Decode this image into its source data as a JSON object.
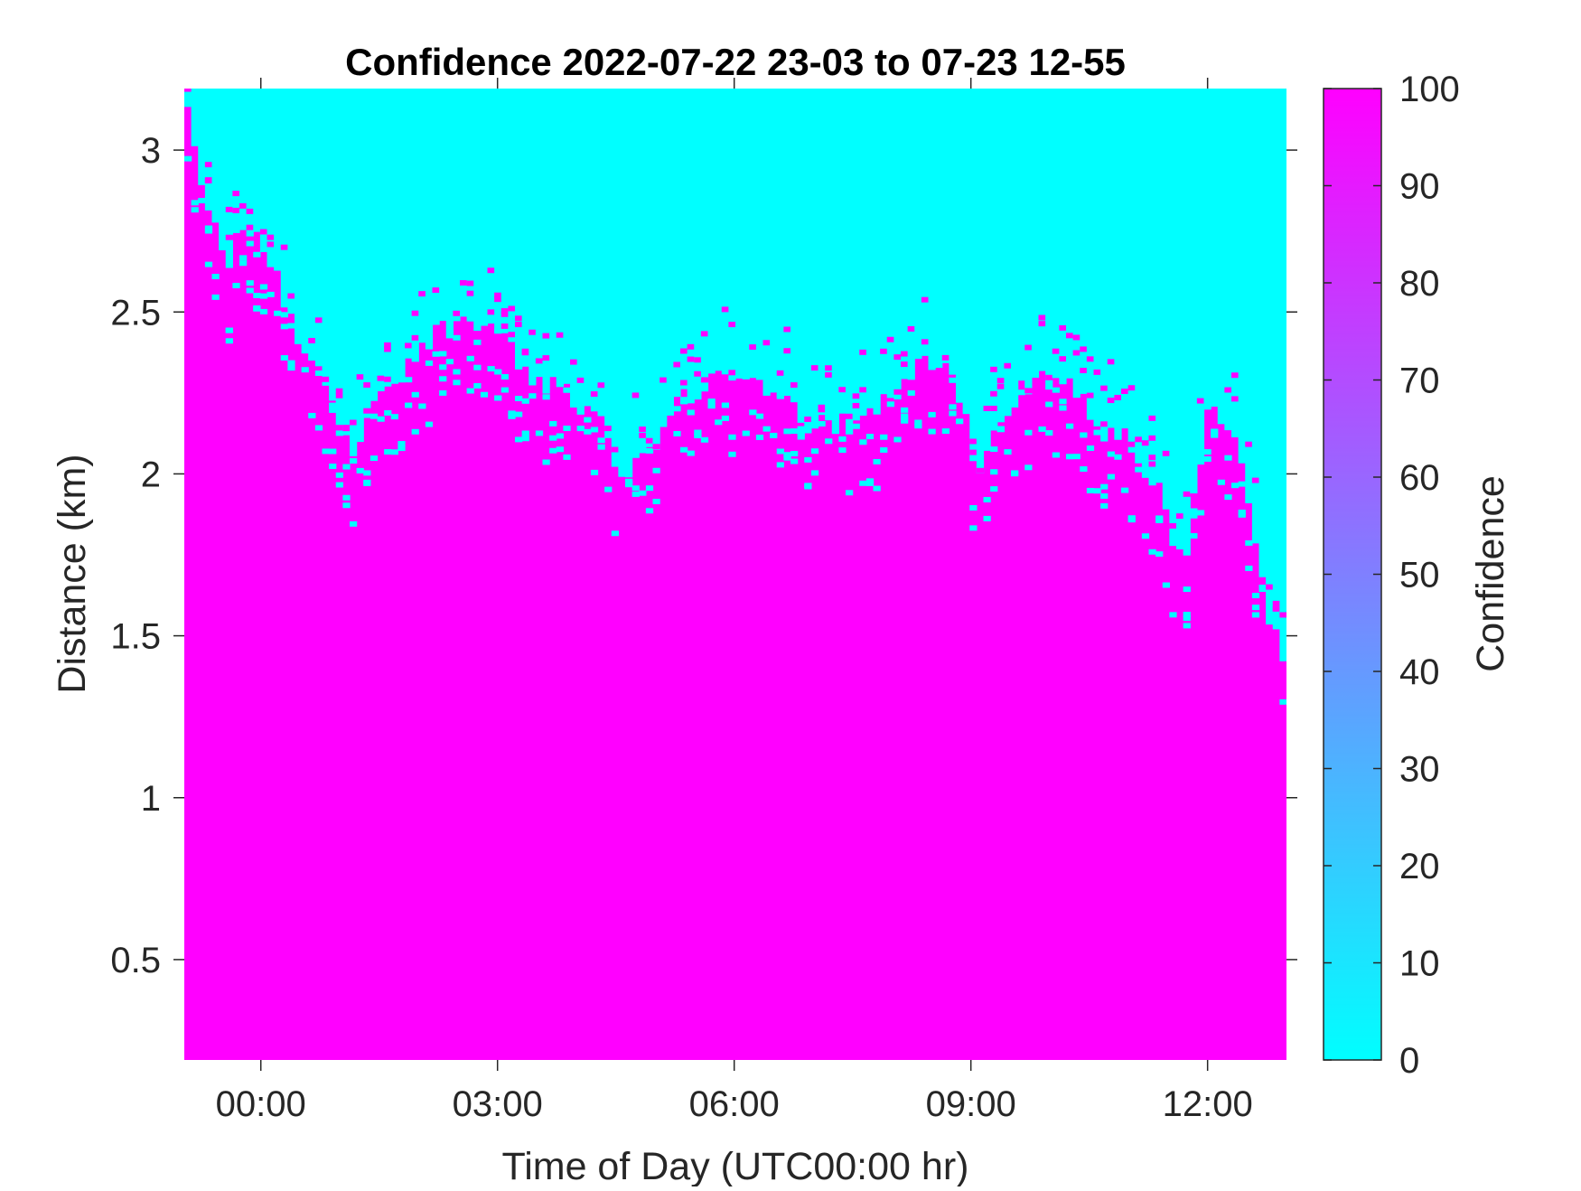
{
  "chart_data": {
    "type": "heatmap",
    "title": "Confidence 2022-07-22 23-03 to 07-23 12-55",
    "xlabel": "Time of Day (UTC00:00 hr)",
    "ylabel": "Distance (km)",
    "x_ticks": [
      {
        "value": 0,
        "label": "00:00"
      },
      {
        "value": 3,
        "label": "03:00"
      },
      {
        "value": 6,
        "label": "06:00"
      },
      {
        "value": 9,
        "label": "09:00"
      },
      {
        "value": 12,
        "label": "12:00"
      }
    ],
    "y_ticks": [
      {
        "value": 0.5,
        "label": "0.5"
      },
      {
        "value": 1,
        "label": "1"
      },
      {
        "value": 1.5,
        "label": "1.5"
      },
      {
        "value": 2,
        "label": "2"
      },
      {
        "value": 2.5,
        "label": "2.5"
      },
      {
        "value": 3,
        "label": "3"
      }
    ],
    "xlim": [
      -0.97,
      13.0
    ],
    "ylim": [
      0.19,
      3.19
    ],
    "colorbar": {
      "label": "Confidence",
      "range": [
        0,
        100
      ],
      "ticks": [
        0,
        10,
        20,
        30,
        40,
        50,
        60,
        70,
        80,
        90,
        100
      ],
      "colormap": "cool",
      "low_color": "#00ffff",
      "high_color": "#ff00ff"
    },
    "high_value": 100,
    "low_value": 0,
    "boundary": {
      "description_units": "time (hours, UTC) vs distance (km) above which confidence is 0",
      "points": [
        [
          -0.97,
          3.19
        ],
        [
          -0.85,
          3.0
        ],
        [
          -0.7,
          2.85
        ],
        [
          -0.45,
          2.65
        ],
        [
          -0.2,
          2.75
        ],
        [
          0.0,
          2.7
        ],
        [
          0.3,
          2.55
        ],
        [
          0.6,
          2.35
        ],
        [
          0.9,
          2.25
        ],
        [
          1.2,
          2.05
        ],
        [
          1.45,
          2.25
        ],
        [
          1.8,
          2.3
        ],
        [
          2.2,
          2.45
        ],
        [
          2.6,
          2.45
        ],
        [
          3.0,
          2.45
        ],
        [
          3.4,
          2.3
        ],
        [
          3.8,
          2.25
        ],
        [
          4.2,
          2.2
        ],
        [
          4.6,
          2.0
        ],
        [
          5.0,
          2.1
        ],
        [
          5.4,
          2.25
        ],
        [
          5.8,
          2.3
        ],
        [
          6.2,
          2.3
        ],
        [
          6.6,
          2.25
        ],
        [
          7.0,
          2.15
        ],
        [
          7.4,
          2.15
        ],
        [
          7.8,
          2.2
        ],
        [
          8.2,
          2.3
        ],
        [
          8.5,
          2.35
        ],
        [
          8.8,
          2.3
        ],
        [
          9.1,
          2.0
        ],
        [
          9.4,
          2.2
        ],
        [
          9.8,
          2.3
        ],
        [
          10.2,
          2.3
        ],
        [
          10.6,
          2.15
        ],
        [
          11.0,
          2.1
        ],
        [
          11.4,
          1.95
        ],
        [
          11.7,
          1.7
        ],
        [
          12.0,
          2.2
        ],
        [
          12.4,
          2.1
        ],
        [
          12.8,
          1.5
        ],
        [
          13.0,
          1.45
        ]
      ]
    }
  }
}
